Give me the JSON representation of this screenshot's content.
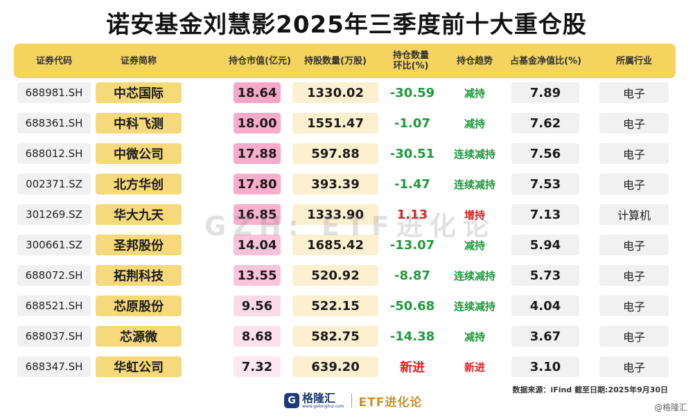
{
  "title": "诺安基金刘慧影2025年三季度前十大重仓股",
  "headers": {
    "code": "证券代码",
    "name": "证券简称",
    "market_value": "持仓市值(亿元)",
    "quantity": "持股数量(万股)",
    "change": "持仓数量环比(%)",
    "trend": "持仓趋势",
    "nav_ratio": "占基金净值比(%)",
    "industry": "所属行业"
  },
  "rows": [
    {
      "code": "688981.SH",
      "name": "中芯国际",
      "market_value": "18.64",
      "quantity": "1330.02",
      "change": "-30.59",
      "trend": "减持",
      "nav_ratio": "7.89",
      "industry": "电子"
    },
    {
      "code": "688361.SH",
      "name": "中科飞测",
      "market_value": "18.00",
      "quantity": "1551.47",
      "change": "-1.07",
      "trend": "减持",
      "nav_ratio": "7.62",
      "industry": "电子"
    },
    {
      "code": "688012.SH",
      "name": "中微公司",
      "market_value": "17.88",
      "quantity": "597.88",
      "change": "-30.51",
      "trend": "连续减持",
      "nav_ratio": "7.56",
      "industry": "电子"
    },
    {
      "code": "002371.SZ",
      "name": "北方华创",
      "market_value": "17.80",
      "quantity": "393.39",
      "change": "-1.47",
      "trend": "连续减持",
      "nav_ratio": "7.53",
      "industry": "电子"
    },
    {
      "code": "301269.SZ",
      "name": "华大九天",
      "market_value": "16.85",
      "quantity": "1333.90",
      "change": "1.13",
      "trend": "增持",
      "nav_ratio": "7.13",
      "industry": "计算机"
    },
    {
      "code": "300661.SZ",
      "name": "圣邦股份",
      "market_value": "14.04",
      "quantity": "1685.42",
      "change": "-13.07",
      "trend": "减持",
      "nav_ratio": "5.94",
      "industry": "电子"
    },
    {
      "code": "688072.SH",
      "name": "拓荆科技",
      "market_value": "13.55",
      "quantity": "520.92",
      "change": "-8.87",
      "trend": "连续减持",
      "nav_ratio": "5.73",
      "industry": "电子"
    },
    {
      "code": "688521.SH",
      "name": "芯原股份",
      "market_value": "9.56",
      "quantity": "522.15",
      "change": "-50.68",
      "trend": "连续减持",
      "nav_ratio": "4.04",
      "industry": "电子"
    },
    {
      "code": "688037.SH",
      "name": "芯源微",
      "market_value": "8.68",
      "quantity": "582.75",
      "change": "-14.38",
      "trend": "减持",
      "nav_ratio": "3.67",
      "industry": "电子"
    },
    {
      "code": "688347.SH",
      "name": "华虹公司",
      "market_value": "7.32",
      "quantity": "639.20",
      "change": "新进",
      "trend": "新进",
      "nav_ratio": "3.10",
      "industry": "电子"
    }
  ],
  "watermark": "GZH: ETF进化论",
  "source": "数据来源：iFind 截至日期:2025年9月30日",
  "footer": {
    "logo_mark": "G",
    "logo_name": "格隆汇",
    "logo_url": "www.gelonghui.com",
    "brand": "ETF进化论"
  },
  "corner_watermark": "@格隆汇",
  "colors": {
    "header_bg": "#f4d35e",
    "negative": "#1c9a3a",
    "positive": "#e02020",
    "market_value_max": "#f7a8c8",
    "market_value_min": "#fde8f1"
  }
}
